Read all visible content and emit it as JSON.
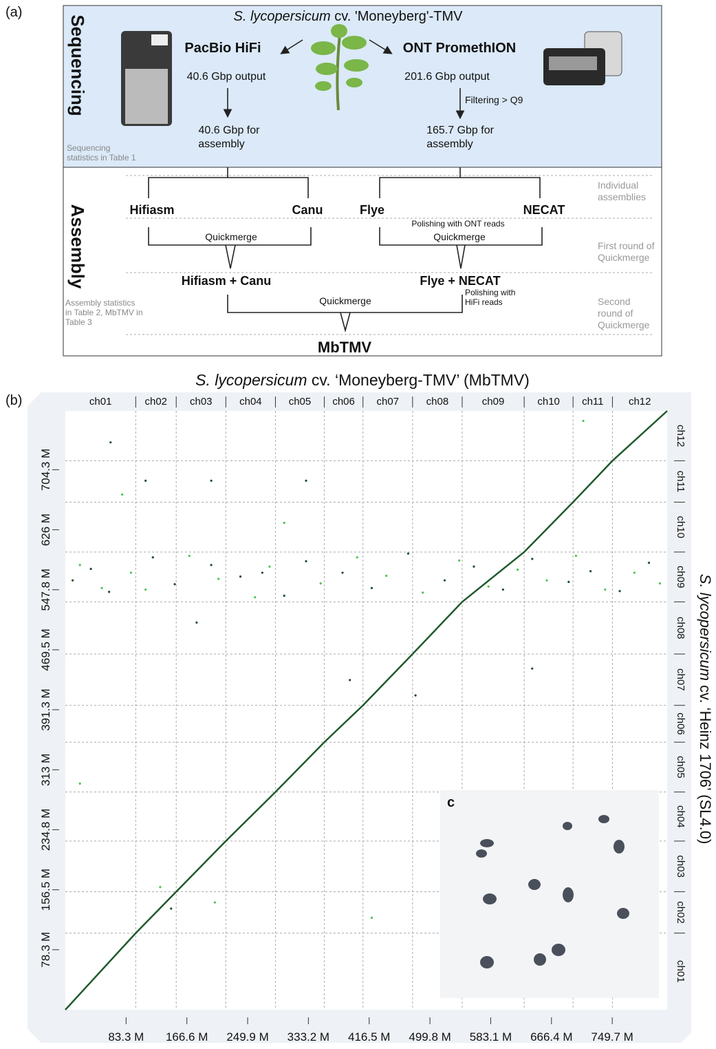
{
  "panel_a": {
    "label": "(a)",
    "title_italic": "S. lycopersicum",
    "title_rest": "cv. 'Moneyberg'-TMV",
    "section_sequencing": "Sequencing",
    "section_assembly": "Assembly",
    "pacbio": "PacBio HiFi",
    "pacbio_output": "40.6 Gbp output",
    "pacbio_assembly": [
      "40.6 Gbp for",
      "assembly"
    ],
    "ont": "ONT PromethION",
    "ont_output": "201.6 Gbp output",
    "ont_filter": "Filtering > Q9",
    "ont_assembly": [
      "165.7 Gbp for",
      "assembly"
    ],
    "seq_note": [
      "Sequencing",
      "statistics in Table 1"
    ],
    "hifiasm": "Hifiasm",
    "canu": "Canu",
    "flye": "Flye",
    "necat": "NECAT",
    "polish_ont": "Polishing with ONT reads",
    "quickmerge_left": "Quickmerge",
    "quickmerge_right": "Quickmerge",
    "merge_left": "Hifiasm + Canu",
    "merge_right": "Flye + NECAT",
    "quickmerge_final": "Quickmerge",
    "polish_hifi": [
      "Polishing with",
      "HiFi reads"
    ],
    "final": "MbTMV",
    "asm_note": [
      "Assembly statistics",
      "in Table 2, MbTMV in",
      "Table 3"
    ],
    "stage_individual": [
      "Individual",
      "assemblies"
    ],
    "stage_first": [
      "First round of",
      "Quickmerge"
    ],
    "stage_second": [
      "Second",
      "round of",
      "Quickmerge"
    ]
  },
  "chart_data": {
    "type": "scatter",
    "label": "(b)",
    "title_italic": "S. lycopersicum",
    "title_rest": "cv. ‘Moneyberg-TMV’ (MbTMV)",
    "y_title_italic": "S. lycopersicum",
    "y_title_rest": "cv. ‘Heinz 1706’ (SL4.0)",
    "inset_label": "c",
    "x_chromosomes": [
      "ch01",
      "ch02",
      "ch03",
      "ch04",
      "ch05",
      "ch06",
      "ch07",
      "ch08",
      "ch09",
      "ch10",
      "ch11",
      "ch12"
    ],
    "x_chrom_ends": [
      96.5,
      152,
      220,
      288,
      355,
      408,
      476,
      544,
      629,
      696,
      750,
      825
    ],
    "y_chromosomes": [
      "ch01",
      "ch02",
      "ch03",
      "ch04",
      "ch05",
      "ch06",
      "ch07",
      "ch08",
      "ch09",
      "ch10",
      "ch11",
      "ch12"
    ],
    "y_chrom_ends": [
      100,
      154,
      220,
      284,
      349,
      397,
      464,
      532,
      597,
      662,
      716,
      781
    ],
    "xlim": [
      0,
      825
    ],
    "ylim": [
      0,
      781
    ],
    "xticks": [
      {
        "value": 83.3,
        "label": "83.3 M"
      },
      {
        "value": 166.6,
        "label": "166.6 M"
      },
      {
        "value": 249.9,
        "label": "249.9 M"
      },
      {
        "value": 333.2,
        "label": "333.2 M"
      },
      {
        "value": 416.5,
        "label": "416.5 M"
      },
      {
        "value": 499.8,
        "label": "499.8 M"
      },
      {
        "value": 583.1,
        "label": "583.1 M"
      },
      {
        "value": 666.4,
        "label": "666.4 M"
      },
      {
        "value": 749.7,
        "label": "749.7 M"
      }
    ],
    "yticks": [
      {
        "value": 78.3,
        "label": "78.3 M"
      },
      {
        "value": 156.5,
        "label": "156.5 M"
      },
      {
        "value": 234.8,
        "label": "234.8 M"
      },
      {
        "value": 313,
        "label": "313 M"
      },
      {
        "value": 391.3,
        "label": "391.3 M"
      },
      {
        "value": 469.5,
        "label": "469.5 M"
      },
      {
        "value": 547.8,
        "label": "547.8 M"
      },
      {
        "value": 626,
        "label": "626 M"
      },
      {
        "value": 704.3,
        "label": "704.3 M"
      }
    ],
    "series": [
      {
        "color": "#1f5a2c",
        "x": [
          0,
          96.5,
          152,
          220,
          288,
          355,
          408,
          476,
          544,
          629,
          696,
          750,
          825
        ],
        "values": [
          0,
          100,
          154,
          220,
          284,
          349,
          397,
          464,
          532,
          597,
          662,
          716,
          781
        ]
      },
      {
        "color": "#1f4d26",
        "x": [
          10,
          35,
          60,
          120,
          150,
          200,
          240,
          300,
          330,
          380,
          420,
          470,
          520,
          560,
          600,
          640,
          690,
          720,
          760,
          800,
          62,
          145,
          180,
          270,
          390,
          480,
          640,
          110,
          200,
          330
        ],
        "values": [
          560,
          575,
          545,
          590,
          555,
          580,
          565,
          540,
          585,
          570,
          550,
          595,
          560,
          578,
          548,
          588,
          558,
          572,
          546,
          583,
          740,
          132,
          505,
          570,
          430,
          410,
          445,
          690,
          690,
          690
        ]
      },
      {
        "color": "#4cc34c",
        "x": [
          20,
          50,
          90,
          110,
          170,
          210,
          260,
          280,
          350,
          400,
          440,
          490,
          540,
          580,
          620,
          660,
          700,
          740,
          780,
          815,
          78,
          20,
          130,
          205,
          300,
          420,
          710
        ],
        "values": [
          580,
          550,
          570,
          548,
          592,
          562,
          538,
          578,
          556,
          590,
          566,
          544,
          586,
          552,
          574,
          560,
          592,
          548,
          570,
          556,
          672,
          295,
          160,
          140,
          635,
          120,
          768
        ]
      }
    ]
  }
}
